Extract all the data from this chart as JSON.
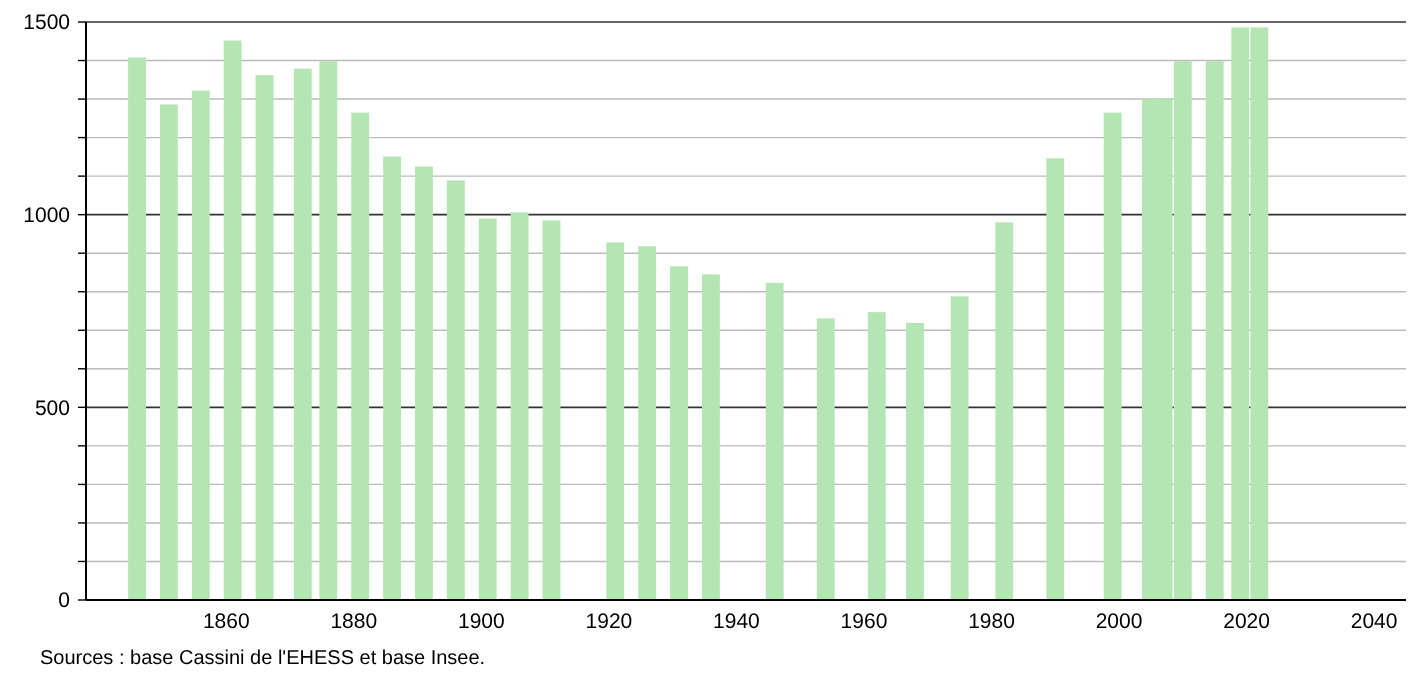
{
  "chart_data": {
    "type": "bar",
    "x": [
      1846,
      1851,
      1856,
      1861,
      1866,
      1872,
      1876,
      1881,
      1886,
      1891,
      1896,
      1901,
      1906,
      1911,
      1921,
      1926,
      1931,
      1936,
      1946,
      1954,
      1962,
      1968,
      1975,
      1982,
      1990,
      1999,
      2005,
      2007,
      2010,
      2015,
      2019,
      2022
    ],
    "values": [
      1408,
      1286,
      1322,
      1452,
      1362,
      1379,
      1398,
      1265,
      1151,
      1125,
      1089,
      990,
      1006,
      985,
      928,
      918,
      866,
      845,
      823,
      731,
      747,
      719,
      788,
      980,
      1146,
      1265,
      1300,
      1300,
      1398,
      1398,
      1486,
      1486
    ],
    "color": "#b3e6b3",
    "xlim": [
      1838,
      2045
    ],
    "xticks": [
      1860,
      1880,
      1900,
      1920,
      1940,
      1960,
      1980,
      2000,
      2020,
      2040
    ],
    "ylim": [
      0,
      1500
    ],
    "yticks": [
      0,
      {
        "value": 100,
        "label": null
      },
      {
        "value": 200,
        "label": null
      },
      {
        "value": 300,
        "label": null
      },
      {
        "value": 400,
        "label": null
      },
      500,
      {
        "value": 600,
        "label": null
      },
      {
        "value": 700,
        "label": null
      },
      {
        "value": 800,
        "label": null
      },
      {
        "value": 900,
        "label": null
      },
      1000,
      {
        "value": 1100,
        "label": null
      },
      {
        "value": 1200,
        "label": null
      },
      {
        "value": 1300,
        "label": null
      },
      {
        "value": 1400,
        "label": null
      },
      1500
    ],
    "grid": true,
    "annotations": [
      "Sources : base Cassini de l'EHESS et base Insee."
    ]
  }
}
